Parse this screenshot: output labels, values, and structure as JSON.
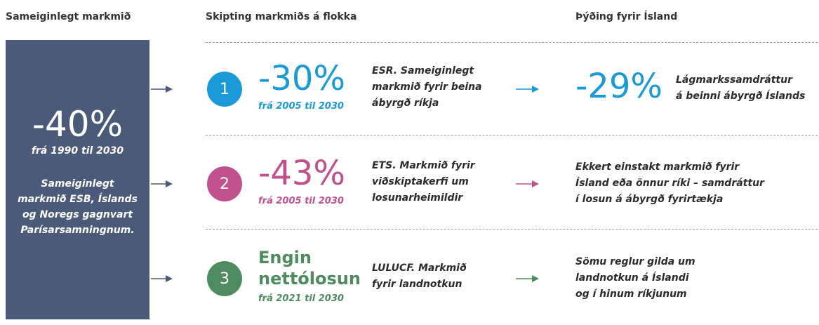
{
  "headers": [
    "Sameiginlegt markmið",
    "Skipting markmiðs á flokka",
    "Þýðing fyrir Ísland"
  ],
  "summary": {
    "value": "-40%",
    "period": "frá 1990 til 2030",
    "text_lines": [
      "Sameiginlegt",
      "markmið ESB, Íslands",
      "og Noregs gagnvart",
      "Parísarsamningnum."
    ]
  },
  "rows": [
    {
      "number": "1",
      "color": "#1a9bd7",
      "value_lines": [
        "-30%"
      ],
      "period": "frá 2005 til 2030",
      "description_lines": [
        "ESR. Sameiginlegt",
        "markmið fyrir beina",
        "ábyrgð ríkja"
      ],
      "impact_value": "-29%",
      "impact_lines": [
        "Lágmarkssamdráttur",
        "á beinni ábyrgð Íslands"
      ]
    },
    {
      "number": "2",
      "color": "#c0508e",
      "value_lines": [
        "-43%"
      ],
      "period": "frá 2005 til 2030",
      "description_lines": [
        "ETS. Markmið fyrir",
        "viðskiptakerfi um",
        "losunarheimildir"
      ],
      "impact_lines": [
        "Ekkert einstakt markmið fyrir",
        "Ísland eða önnur ríki – samdráttur",
        "í losun á ábyrgð fyrirtækja"
      ]
    },
    {
      "number": "3",
      "color": "#4e8c5f",
      "value_lines": [
        "Engin",
        "nettólosun"
      ],
      "period": "frá 2021 til 2030",
      "description_lines": [
        "LULUCF. Markmið",
        "fyrir landnotkun"
      ],
      "impact_lines": [
        "Sömu reglur gilda um",
        "landnotkun á Íslandi",
        "og í hinum ríkjunum"
      ]
    }
  ]
}
